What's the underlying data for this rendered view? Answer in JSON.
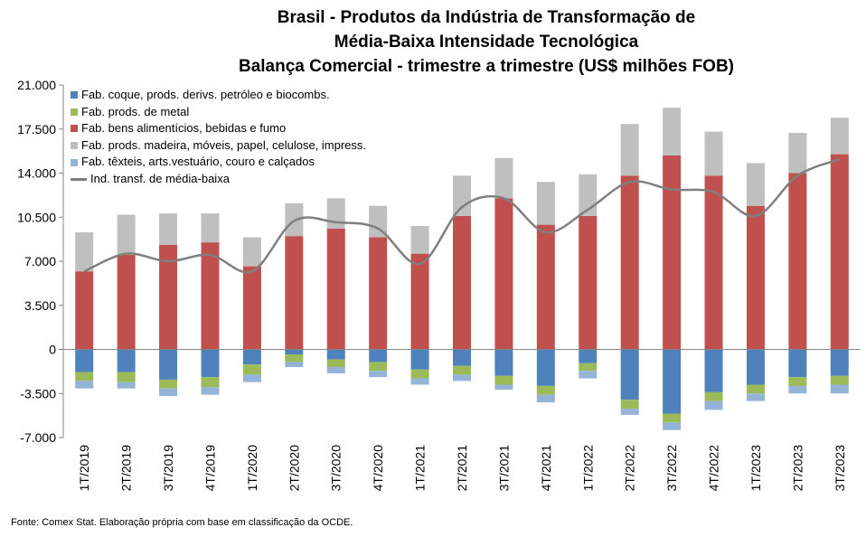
{
  "title_lines": [
    "Brasil - Produtos da Indústria de Transformação de",
    "Média-Baixa Intensidade Tecnológica",
    "Balança Comercial - trimestre a trimestre (US$ milhões FOB)"
  ],
  "source": "Fonte: Comex Stat. Elaboração própria com base em classificação da OCDE.",
  "colors": {
    "coque": "#4f81bd",
    "metal": "#9bbb59",
    "alimentos": "#c0504d",
    "madeira": "#bfbfbf",
    "texteis": "#95b3d7",
    "line": "#7f7f7f"
  },
  "chart_data": {
    "type": "bar",
    "stacked": true,
    "categories": [
      "1T/2019",
      "2T/2019",
      "3T/2019",
      "4T/2019",
      "1T/2020",
      "2T/2020",
      "3T/2020",
      "4T/2020",
      "1T/2021",
      "2T/2021",
      "3T/2021",
      "4T/2021",
      "1T/2022",
      "2T/2022",
      "3T/2022",
      "4T/2022",
      "1T/2023",
      "2T/2023",
      "3T/2023"
    ],
    "ylim": [
      -7000,
      21000
    ],
    "yticks": [
      21000,
      17500,
      14000,
      10500,
      7000,
      3500,
      0,
      -3500,
      -7000
    ],
    "ytick_labels": [
      "21.000",
      "17.500",
      "14.000",
      "10.500",
      "7.000",
      "3.500",
      "0",
      "-3.500",
      "-7.000"
    ],
    "legend_position": "top-left",
    "grid": false,
    "series": [
      {
        "name": "Fab. coque, prods. derivs. petróleo e biocombs.",
        "key": "coque",
        "kind": "bar",
        "values": [
          -1800,
          -1800,
          -2400,
          -2200,
          -1200,
          -400,
          -800,
          -1000,
          -1600,
          -1300,
          -2100,
          -2900,
          -1100,
          -4000,
          -5100,
          -3400,
          -2800,
          -2200,
          -2100
        ]
      },
      {
        "name": "Fab. prods. de metal",
        "key": "metal",
        "kind": "bar",
        "values": [
          -700,
          -800,
          -700,
          -800,
          -800,
          -600,
          -600,
          -700,
          -700,
          -700,
          -700,
          -700,
          -600,
          -700,
          -700,
          -700,
          -700,
          -700,
          -700
        ]
      },
      {
        "name": "Fab. bens alimentícios, bebidas e fumo",
        "key": "alimentos",
        "kind": "bar",
        "values": [
          6200,
          7500,
          8300,
          8500,
          6600,
          9000,
          9600,
          8900,
          7600,
          10600,
          12000,
          9900,
          10600,
          13800,
          15400,
          13800,
          11400,
          14000,
          15500
        ]
      },
      {
        "name": "Fab. prods. madeira, móveis, papel, celulose, impress.",
        "key": "madeira",
        "kind": "bar",
        "values": [
          3100,
          3200,
          2500,
          2300,
          2300,
          2600,
          2400,
          2500,
          2200,
          3200,
          3200,
          3400,
          3300,
          4100,
          3800,
          3500,
          3400,
          3200,
          2900
        ]
      },
      {
        "name": "Fab. têxteis, arts.vestuário, couro e calçados",
        "key": "texteis",
        "kind": "bar",
        "values": [
          -600,
          -500,
          -600,
          -600,
          -600,
          -400,
          -500,
          -500,
          -500,
          -500,
          -400,
          -600,
          -600,
          -500,
          -600,
          -700,
          -600,
          -600,
          -700
        ]
      },
      {
        "name": "Ind. transf. de média-baixa",
        "key": "line",
        "kind": "line",
        "values": [
          6200,
          7600,
          7000,
          7500,
          6200,
          10200,
          10100,
          9600,
          6800,
          11300,
          12000,
          9300,
          11100,
          13300,
          12700,
          12500,
          10600,
          13800,
          15100
        ]
      }
    ]
  }
}
